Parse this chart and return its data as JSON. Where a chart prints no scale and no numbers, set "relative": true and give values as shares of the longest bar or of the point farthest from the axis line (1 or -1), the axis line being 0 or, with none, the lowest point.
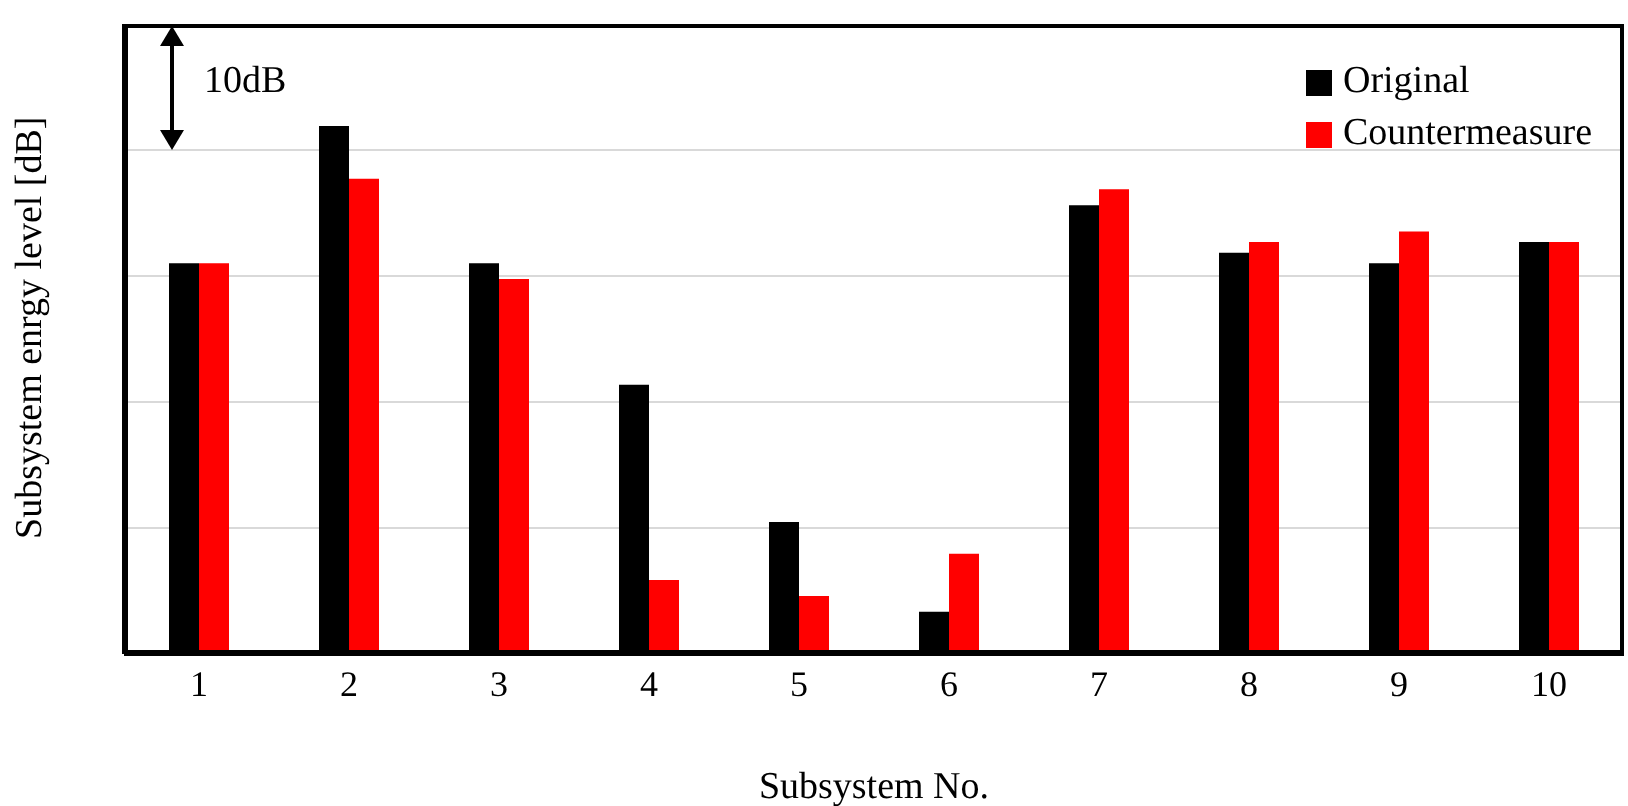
{
  "chart_data": {
    "type": "bar",
    "relative": true,
    "xlabel": "Subsystem No.",
    "ylabel": "Subsystem enrgy level [dB]",
    "categories": [
      "1",
      "2",
      "3",
      "4",
      "5",
      "6",
      "7",
      "8",
      "9",
      "10"
    ],
    "series": [
      {
        "name": "Original",
        "color": "#000000",
        "values": [
          0.74,
          1,
          0.74,
          0.51,
          0.25,
          0.08,
          0.85,
          0.76,
          0.74,
          0.78
        ]
      },
      {
        "name": "Countermeasure",
        "color": "#ff0000",
        "values": [
          0.74,
          0.9,
          0.71,
          0.14,
          0.11,
          0.19,
          0.88,
          0.78,
          0.8,
          0.78
        ]
      }
    ],
    "annotations": [
      "10dB"
    ],
    "grid": "y",
    "legend": "top right"
  }
}
